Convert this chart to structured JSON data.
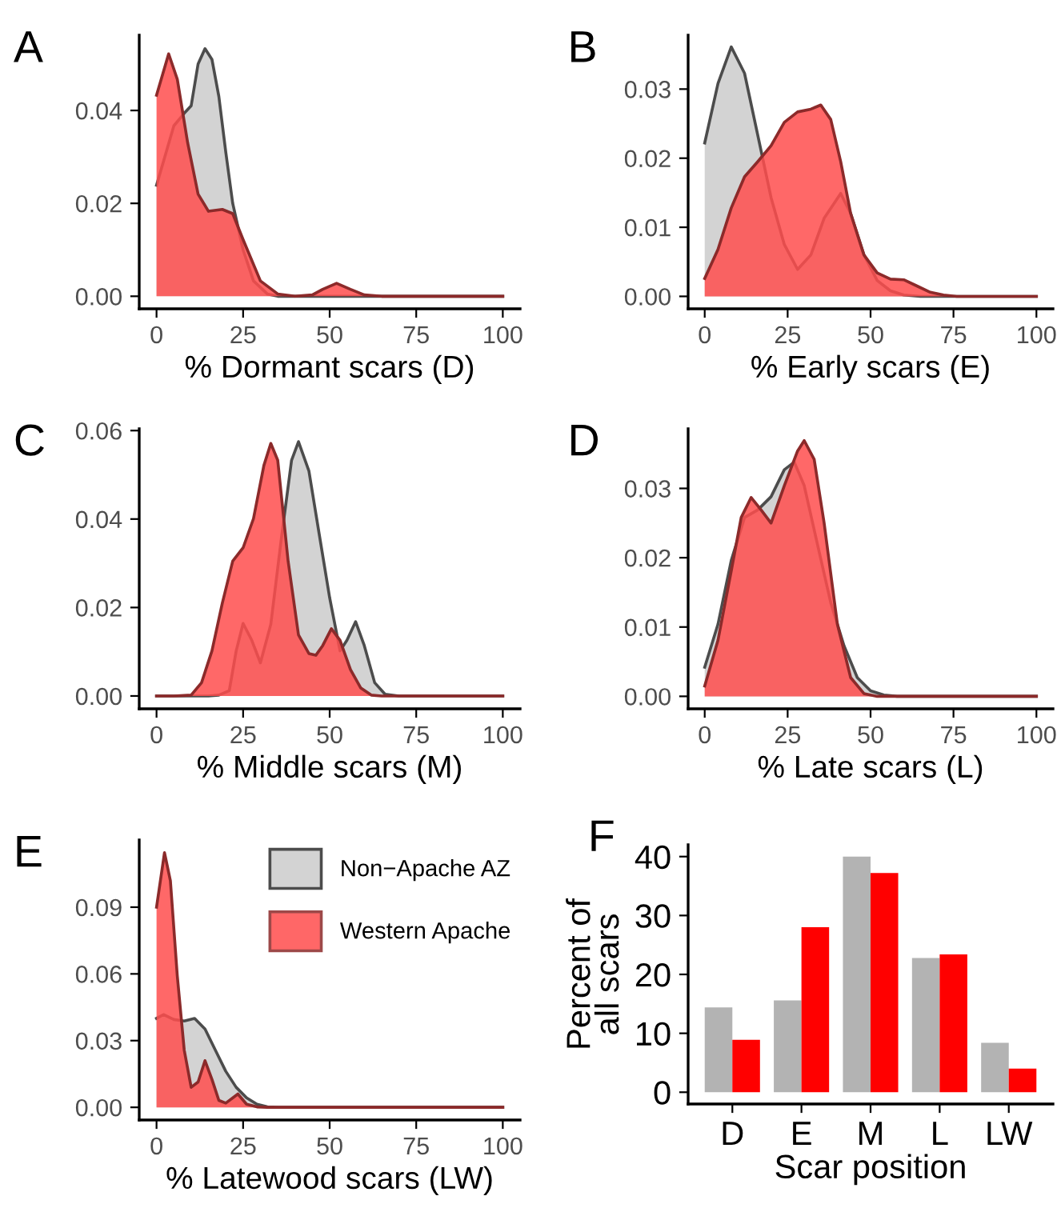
{
  "chart_data": [
    {
      "type": "area",
      "title": "A",
      "xlabel": "% Dormant scars (D)",
      "xlim": [
        -5,
        105
      ],
      "xticks": [
        0,
        25,
        50,
        75,
        100
      ],
      "ylim": [
        -0.0027,
        0.0562
      ],
      "yticks": [
        {
          "value": 0,
          "label": "0.00"
        },
        {
          "value": 0.02,
          "label": "0.02"
        },
        {
          "value": 0.04,
          "label": "0.04"
        }
      ],
      "series": [
        {
          "color": "#d3d3d3",
          "x": [
            0,
            5,
            8,
            10,
            12,
            14,
            16,
            18,
            20,
            22,
            25,
            28,
            32,
            35,
            40,
            50,
            60,
            70,
            80,
            90,
            100
          ],
          "values": [
            0.0239,
            0.0367,
            0.0394,
            0.041,
            0.05,
            0.0533,
            0.051,
            0.043,
            0.031,
            0.02,
            0.01,
            0.0033,
            0.0005,
            0,
            0,
            0,
            0,
            0,
            0,
            0,
            0
          ]
        },
        {
          "color": "#ff4d4d",
          "x": [
            0,
            3.5,
            6,
            9,
            12,
            15,
            19,
            22,
            25,
            30,
            35,
            40,
            45,
            48,
            52,
            56,
            60,
            65,
            70,
            80,
            90,
            100
          ],
          "values": [
            0.0433,
            0.0522,
            0.0467,
            0.033,
            0.022,
            0.0183,
            0.0187,
            0.0178,
            0.0122,
            0.0033,
            0.0005,
            0,
            0.0003,
            0.0015,
            0.0028,
            0.0015,
            0.0003,
            0,
            0,
            0,
            0,
            0
          ]
        }
      ]
    },
    {
      "type": "area",
      "title": "B",
      "xlabel": "% Early scars (E)",
      "xlim": [
        -5,
        105
      ],
      "xticks": [
        0,
        25,
        50,
        75,
        100
      ],
      "ylim": [
        -0.0018,
        0.0378
      ],
      "yticks": [
        {
          "value": 0,
          "label": "0.00"
        },
        {
          "value": 0.01,
          "label": "0.01"
        },
        {
          "value": 0.02,
          "label": "0.02"
        },
        {
          "value": 0.03,
          "label": "0.03"
        }
      ],
      "series": [
        {
          "color": "#d3d3d3",
          "x": [
            0,
            4,
            8,
            12,
            16,
            20,
            24,
            28,
            32,
            36,
            41,
            44,
            48,
            52,
            56,
            60,
            65,
            70,
            80,
            90,
            100
          ],
          "values": [
            0.0222,
            0.0308,
            0.0361,
            0.0323,
            0.0233,
            0.0143,
            0.0075,
            0.0039,
            0.006,
            0.0113,
            0.0149,
            0.012,
            0.006,
            0.0023,
            0.0008,
            0.0002,
            0,
            0,
            0,
            0,
            0
          ]
        },
        {
          "color": "#ff4d4d",
          "x": [
            0,
            4,
            8,
            12,
            16,
            20,
            24,
            28,
            32,
            35,
            38,
            41,
            44,
            48,
            52,
            56,
            60,
            64,
            68,
            72,
            76,
            80,
            90,
            100
          ],
          "values": [
            0.0026,
            0.0068,
            0.0128,
            0.0173,
            0.0195,
            0.0218,
            0.0252,
            0.0267,
            0.0271,
            0.0277,
            0.0256,
            0.0195,
            0.012,
            0.006,
            0.0034,
            0.0025,
            0.0024,
            0.0015,
            0.0006,
            0.0002,
            0,
            0,
            0,
            0
          ]
        }
      ]
    },
    {
      "type": "area",
      "title": "C",
      "xlabel": "% Middle scars (M)",
      "xlim": [
        -5,
        105
      ],
      "xticks": [
        0,
        25,
        50,
        75,
        100
      ],
      "ylim": [
        -0.0029,
        0.0604
      ],
      "yticks": [
        {
          "value": 0,
          "label": "0.00"
        },
        {
          "value": 0.02,
          "label": "0.02"
        },
        {
          "value": 0.04,
          "label": "0.04"
        },
        {
          "value": 0.06,
          "label": "0.06"
        }
      ],
      "series": [
        {
          "color": "#d3d3d3",
          "x": [
            0,
            10,
            15,
            18,
            21,
            23,
            25,
            27.5,
            30,
            33,
            36,
            39,
            41,
            44,
            47,
            50,
            53,
            55,
            57.5,
            60,
            63,
            66,
            70,
            80,
            90,
            100
          ],
          "values": [
            0,
            0,
            0,
            0.0002,
            0.0012,
            0.0102,
            0.0164,
            0.0126,
            0.0075,
            0.0162,
            0.0353,
            0.0533,
            0.0575,
            0.0509,
            0.0365,
            0.0222,
            0.0102,
            0.0126,
            0.0168,
            0.0114,
            0.003,
            0.0004,
            0,
            0,
            0,
            0
          ]
        },
        {
          "color": "#ff4d4d",
          "x": [
            0,
            5,
            10,
            13,
            16,
            19,
            22,
            25,
            28,
            31,
            33,
            35,
            38,
            41,
            44,
            46,
            48,
            50.5,
            53,
            56,
            59,
            62,
            65,
            70,
            80,
            90,
            100
          ],
          "values": [
            0,
            0,
            0.0002,
            0.003,
            0.0102,
            0.021,
            0.0305,
            0.0335,
            0.0401,
            0.0521,
            0.0571,
            0.0533,
            0.0305,
            0.0138,
            0.0096,
            0.0092,
            0.0114,
            0.0152,
            0.0126,
            0.006,
            0.0018,
            0.0002,
            0,
            0,
            0,
            0,
            0
          ]
        }
      ]
    },
    {
      "type": "area",
      "title": "D",
      "xlabel": "% Late scars (L)",
      "xlim": [
        -5,
        105
      ],
      "xticks": [
        0,
        25,
        50,
        75,
        100
      ],
      "ylim": [
        -0.0018,
        0.0386
      ],
      "yticks": [
        {
          "value": 0,
          "label": "0.00"
        },
        {
          "value": 0.01,
          "label": "0.01"
        },
        {
          "value": 0.02,
          "label": "0.02"
        },
        {
          "value": 0.03,
          "label": "0.03"
        }
      ],
      "series": [
        {
          "color": "#d3d3d3",
          "x": [
            0,
            4,
            8,
            12,
            16,
            20,
            24,
            27,
            30,
            34,
            38,
            42,
            46,
            50,
            54,
            58,
            70,
            80,
            90,
            100
          ],
          "values": [
            0.0042,
            0.0104,
            0.0196,
            0.0258,
            0.0269,
            0.0288,
            0.0327,
            0.0338,
            0.0304,
            0.0219,
            0.0135,
            0.0073,
            0.0027,
            0.0008,
            0.0002,
            0,
            0,
            0,
            0,
            0
          ]
        },
        {
          "color": "#ff4d4d",
          "x": [
            0,
            4,
            8,
            11,
            14,
            17,
            20,
            24,
            28,
            30,
            33,
            36,
            40,
            44,
            48,
            52,
            60,
            70,
            80,
            90,
            100
          ],
          "values": [
            0.0015,
            0.0081,
            0.0181,
            0.0258,
            0.0287,
            0.0269,
            0.025,
            0.0304,
            0.0354,
            0.0369,
            0.0342,
            0.025,
            0.0104,
            0.0027,
            0.0004,
            0,
            0,
            0,
            0,
            0,
            0
          ]
        }
      ]
    },
    {
      "type": "area",
      "title": "E",
      "xlabel": "% Latewood scars (LW)",
      "xlim": [
        -5,
        105
      ],
      "xticks": [
        0,
        25,
        50,
        75,
        100
      ],
      "ylim": [
        -0.0057,
        0.1202
      ],
      "yticks": [
        {
          "value": 0,
          "label": "0.00"
        },
        {
          "value": 0.03,
          "label": "0.03"
        },
        {
          "value": 0.06,
          "label": "0.06"
        },
        {
          "value": 0.09,
          "label": "0.09"
        }
      ],
      "legend": "top right",
      "series": [
        {
          "name": "Non−Apache AZ",
          "color": "#d3d3d3",
          "x": [
            0,
            2,
            5,
            8,
            11,
            14,
            17,
            20,
            23,
            26,
            29,
            32,
            35,
            40,
            50,
            60,
            70,
            80,
            90,
            100
          ],
          "values": [
            0.04,
            0.0417,
            0.0395,
            0.0388,
            0.04,
            0.0352,
            0.0257,
            0.0162,
            0.009,
            0.0043,
            0.0014,
            0.0002,
            0,
            0,
            0,
            0,
            0,
            0,
            0,
            0
          ]
        },
        {
          "name": "Western Apache",
          "color": "#ff4d4d",
          "x": [
            0,
            2.3,
            4,
            6,
            8,
            10,
            12,
            14,
            16,
            18,
            20,
            23.5,
            26,
            29,
            32,
            40,
            50,
            60,
            70,
            80,
            90,
            100
          ],
          "values": [
            0.09,
            0.1145,
            0.1019,
            0.059,
            0.0257,
            0.009,
            0.0114,
            0.021,
            0.0126,
            0.0031,
            0.0019,
            0.006,
            0.0014,
            0.0002,
            0,
            0,
            0,
            0,
            0,
            0,
            0,
            0
          ]
        }
      ]
    },
    {
      "type": "bar",
      "title": "F",
      "xlabel": "Scar position",
      "ylabel": "Percent of\nall scars",
      "categories": [
        "D",
        "E",
        "M",
        "L",
        "LW"
      ],
      "ylim": [
        -2,
        42
      ],
      "yticks": [
        0,
        10,
        20,
        30,
        40
      ],
      "series": [
        {
          "color": "#b3b3b3",
          "values": [
            14.4,
            15.6,
            40,
            22.8,
            8.4
          ]
        },
        {
          "color": "#ff0000",
          "values": [
            8.9,
            28,
            37.2,
            23.4,
            4
          ]
        }
      ]
    }
  ]
}
